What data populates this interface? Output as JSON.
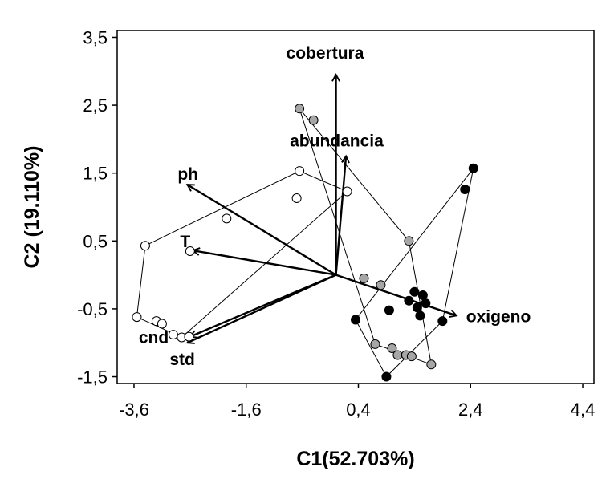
{
  "chart_data": {
    "type": "scatter",
    "title": "",
    "xlabel": "C1(52.703%)",
    "ylabel": "C2 (19.110%)",
    "xlim": [
      -3.9,
      4.6
    ],
    "ylim": [
      -1.6,
      3.6
    ],
    "xticks": [
      -3.6,
      -1.6,
      0.4,
      2.4,
      4.4
    ],
    "xtick_labels": [
      "-3,6",
      "-1,6",
      "0,4",
      "2,4",
      "4,4"
    ],
    "yticks": [
      -1.5,
      -0.5,
      0.5,
      1.5,
      2.5,
      3.5
    ],
    "ytick_labels": [
      "-1,5",
      "-0,5",
      "0,5",
      "1,5",
      "2,5",
      "3,5"
    ],
    "grid": false,
    "legend": "none",
    "vectors": [
      {
        "name": "cobertura",
        "x": 0.0,
        "y": 2.95
      },
      {
        "name": "abundancia",
        "x": 0.18,
        "y": 1.75
      },
      {
        "name": "ph",
        "x": -2.65,
        "y": 1.33
      },
      {
        "name": "T",
        "x": -2.55,
        "y": 0.36
      },
      {
        "name": "oxigeno",
        "x": 2.15,
        "y": -0.6
      },
      {
        "name": "cnd",
        "x": -2.6,
        "y": -0.91
      },
      {
        "name": "std",
        "x": -2.65,
        "y": -1.0
      }
    ],
    "series": [
      {
        "style": "open",
        "color": "#ffffff",
        "points": [
          [
            -3.4,
            0.43
          ],
          [
            -2.6,
            0.35
          ],
          [
            -1.95,
            0.83
          ],
          [
            -0.7,
            1.13
          ],
          [
            -0.65,
            1.53
          ],
          [
            0.2,
            1.23
          ],
          [
            -3.55,
            -0.62
          ],
          [
            -3.2,
            -0.68
          ],
          [
            -3.1,
            -0.72
          ],
          [
            -2.9,
            -0.88
          ],
          [
            -2.75,
            -0.92
          ],
          [
            -2.62,
            -0.91
          ]
        ],
        "hull": [
          [
            -0.65,
            1.53
          ],
          [
            0.2,
            1.23
          ],
          [
            -2.75,
            -0.92
          ],
          [
            -3.55,
            -0.62
          ],
          [
            -3.4,
            0.43
          ]
        ]
      },
      {
        "style": "gray",
        "color": "#a6a6a6",
        "points": [
          [
            -0.65,
            2.45
          ],
          [
            -0.4,
            2.28
          ],
          [
            1.3,
            0.5
          ],
          [
            0.5,
            -0.05
          ],
          [
            0.8,
            -0.15
          ],
          [
            0.7,
            -1.02
          ],
          [
            1.0,
            -1.08
          ],
          [
            1.1,
            -1.18
          ],
          [
            1.25,
            -1.18
          ],
          [
            1.35,
            -1.2
          ],
          [
            1.7,
            -1.32
          ]
        ],
        "hull": [
          [
            -0.65,
            2.45
          ],
          [
            1.3,
            0.5
          ],
          [
            1.7,
            -1.32
          ],
          [
            0.7,
            -1.02
          ],
          [
            -0.65,
            2.45
          ]
        ]
      },
      {
        "style": "filled",
        "color": "#000000",
        "points": [
          [
            2.45,
            1.57
          ],
          [
            2.3,
            1.26
          ],
          [
            1.4,
            -0.25
          ],
          [
            1.55,
            -0.3
          ],
          [
            1.3,
            -0.38
          ],
          [
            1.45,
            -0.48
          ],
          [
            1.6,
            -0.42
          ],
          [
            0.95,
            -0.52
          ],
          [
            1.5,
            -0.6
          ],
          [
            0.35,
            -0.66
          ],
          [
            1.9,
            -0.68
          ],
          [
            0.9,
            -1.5
          ]
        ],
        "hull": [
          [
            2.45,
            1.57
          ],
          [
            1.9,
            -0.68
          ],
          [
            0.9,
            -1.5
          ],
          [
            0.35,
            -0.66
          ],
          [
            2.45,
            1.57
          ]
        ]
      }
    ]
  }
}
